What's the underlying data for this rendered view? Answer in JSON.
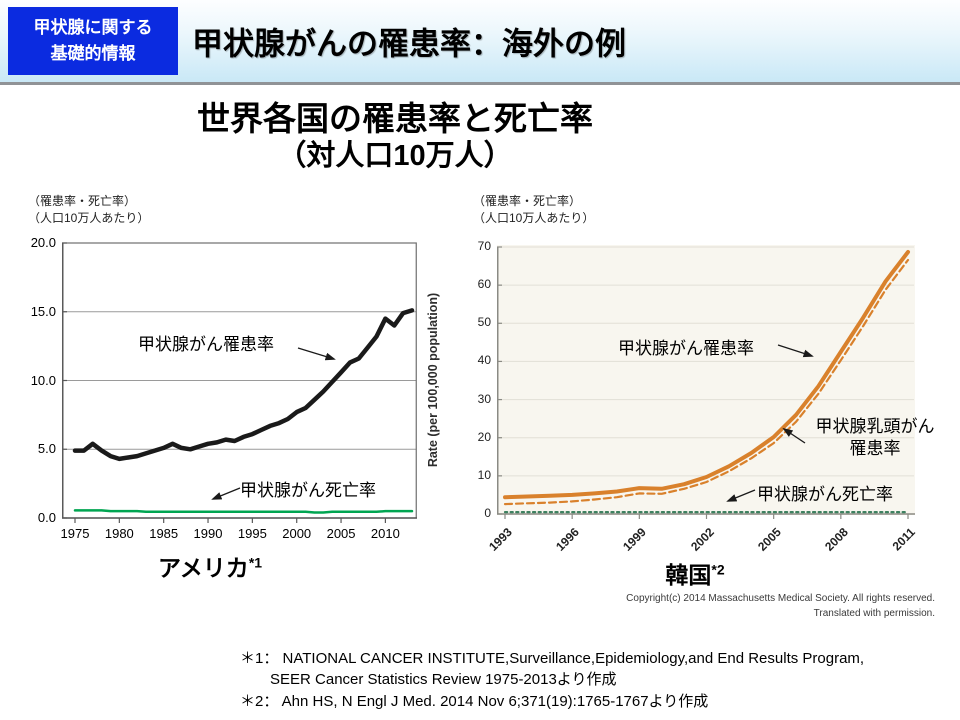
{
  "header": {
    "badge": {
      "line1": "甲状腺に関する",
      "line2": "基礎的情報",
      "bg_color": "#0b2be0",
      "text_color": "#ffffff"
    },
    "title": "甲状腺がんの罹患率：海外の例"
  },
  "title": {
    "main": "世界各国の罹患率と死亡率",
    "sub": "（対人口10万人）"
  },
  "axis_note": {
    "line1": "（罹患率・死亡率）",
    "line2": "（人口10万人あたり）"
  },
  "annotations": {
    "us_incidence": "甲状腺がん罹患率",
    "us_mortality": "甲状腺がん死亡率",
    "kr_incidence": "甲状腺がん罹患率",
    "kr_papillary_line1": "甲状腺乳頭がん",
    "kr_papillary_line2": "罹患率",
    "kr_mortality": "甲状腺がん死亡率"
  },
  "countries": {
    "us": {
      "name": "アメリカ",
      "sup": "*1"
    },
    "kr": {
      "name": "韓国",
      "sup": "*2"
    }
  },
  "copyright": {
    "line1": "Copyright(c) 2014 Massachusetts Medical Society. All rights reserved.",
    "line2": "Translated with permission."
  },
  "footnotes": {
    "line1": "＊1： NATIONAL CANCER INSTITUTE,Surveillance,Epidemiology,and End Results Program,",
    "line2": "SEER Cancer Statistics Review 1975-2013より作成",
    "line3": "＊2： Ahn HS, N Engl J Med. 2014 Nov 6;371(19):1765-1767より作成"
  },
  "chart_data": [
    {
      "type": "line",
      "region": "アメリカ",
      "title": "アメリカ（甲状腺がん罹患率・死亡率, 人口10万人あたり）",
      "xlabel": "",
      "ylabel": "（罹患率・死亡率）（人口10万人あたり）",
      "ylim": [
        0,
        20
      ],
      "yticks": [
        0,
        5,
        10,
        15,
        20
      ],
      "ytick_labels": [
        "0.0",
        "5.0",
        "10.0",
        "15.0",
        "20.0"
      ],
      "xticks": [
        1975,
        1980,
        1985,
        1990,
        1995,
        2000,
        2005,
        2010
      ],
      "grid": true,
      "x": [
        1975,
        1976,
        1977,
        1978,
        1979,
        1980,
        1981,
        1982,
        1983,
        1984,
        1985,
        1986,
        1987,
        1988,
        1989,
        1990,
        1991,
        1992,
        1993,
        1994,
        1995,
        1996,
        1997,
        1998,
        1999,
        2000,
        2001,
        2002,
        2003,
        2004,
        2005,
        2006,
        2007,
        2008,
        2009,
        2010,
        2011,
        2012,
        2013
      ],
      "series": [
        {
          "name": "甲状腺がん罹患率",
          "color": "#1a1a1a",
          "width": 4.5,
          "dash": "",
          "values": [
            4.9,
            4.9,
            5.4,
            4.9,
            4.5,
            4.3,
            4.4,
            4.5,
            4.7,
            4.9,
            5.1,
            5.4,
            5.1,
            5.0,
            5.2,
            5.4,
            5.5,
            5.7,
            5.6,
            5.9,
            6.1,
            6.4,
            6.7,
            6.9,
            7.2,
            7.7,
            8.0,
            8.6,
            9.2,
            9.9,
            10.6,
            11.3,
            11.6,
            12.4,
            13.2,
            14.5,
            14.0,
            14.9,
            15.1
          ]
        },
        {
          "name": "甲状腺がん死亡率",
          "color": "#00a551",
          "width": 2.5,
          "dash": "",
          "values": [
            0.55,
            0.55,
            0.55,
            0.55,
            0.5,
            0.5,
            0.5,
            0.5,
            0.45,
            0.45,
            0.45,
            0.45,
            0.45,
            0.45,
            0.45,
            0.45,
            0.45,
            0.45,
            0.45,
            0.45,
            0.45,
            0.45,
            0.45,
            0.45,
            0.45,
            0.45,
            0.45,
            0.4,
            0.4,
            0.45,
            0.45,
            0.45,
            0.45,
            0.45,
            0.45,
            0.5,
            0.5,
            0.5,
            0.5
          ]
        }
      ]
    },
    {
      "type": "line",
      "region": "韓国",
      "title": "韓国（甲状腺がん罹患率・死亡率, 人口10万人あたり）",
      "xlabel": "",
      "ylabel": "Rate (per 100,000 population)",
      "ylim": [
        0,
        70
      ],
      "yticks": [
        0,
        10,
        20,
        30,
        40,
        50,
        60,
        70
      ],
      "ytick_labels": [
        "0",
        "10",
        "20",
        "30",
        "40",
        "50",
        "60",
        "70"
      ],
      "xticks": [
        1993,
        1996,
        1999,
        2002,
        2005,
        2008,
        2011
      ],
      "grid": true,
      "x": [
        1993,
        1994,
        1995,
        1996,
        1997,
        1998,
        1999,
        2000,
        2001,
        2002,
        2003,
        2004,
        2005,
        2006,
        2007,
        2008,
        2009,
        2010,
        2011
      ],
      "series": [
        {
          "name": "甲状腺がん罹患率",
          "color": "#d9812c",
          "width": 4,
          "dash": "",
          "values": [
            4.4,
            4.6,
            4.8,
            5.0,
            5.4,
            5.9,
            6.8,
            6.6,
            7.8,
            9.7,
            12.5,
            16.0,
            20.2,
            26.0,
            33.5,
            42.5,
            51.5,
            61.0,
            68.7
          ]
        },
        {
          "name": "甲状腺乳頭がん罹患率",
          "color": "#d9812c",
          "width": 2.2,
          "dash": "7,4",
          "values": [
            2.6,
            2.8,
            3.0,
            3.3,
            3.8,
            4.4,
            5.4,
            5.3,
            6.6,
            8.4,
            11.2,
            14.6,
            18.6,
            24.2,
            31.5,
            40.3,
            49.3,
            58.8,
            66.6
          ]
        },
        {
          "name": "甲状腺がん死亡率",
          "color": "#3e8160",
          "width": 2.2,
          "dash": "2.2,3.4",
          "values": [
            0.5,
            0.5,
            0.5,
            0.5,
            0.5,
            0.5,
            0.5,
            0.5,
            0.5,
            0.5,
            0.5,
            0.5,
            0.5,
            0.5,
            0.5,
            0.5,
            0.5,
            0.5,
            0.5
          ]
        }
      ]
    }
  ]
}
